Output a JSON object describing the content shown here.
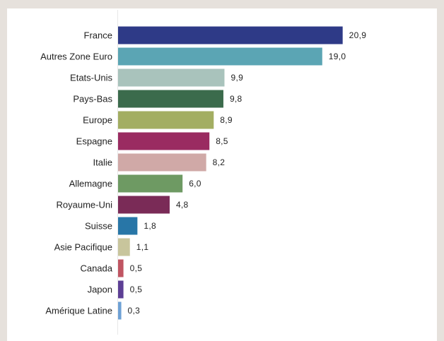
{
  "chart_data": {
    "type": "bar",
    "orientation": "horizontal",
    "title": "",
    "xlabel": "",
    "ylabel": "",
    "grid": false,
    "legend": "none",
    "xlim": [
      0,
      21
    ],
    "categories": [
      "France",
      "Autres Zone Euro",
      "Etats-Unis",
      "Pays-Bas",
      "Europe",
      "Espagne",
      "Italie",
      "Allemagne",
      "Royaume-Uni",
      "Suisse",
      "Asie Pacifique",
      "Canada",
      "Japon",
      "Amérique Latine"
    ],
    "values": [
      20.9,
      19.0,
      9.9,
      9.8,
      8.9,
      8.5,
      8.2,
      6.0,
      4.8,
      1.8,
      1.1,
      0.5,
      0.5,
      0.3
    ],
    "value_labels": [
      "20,9",
      "19,0",
      "9,9",
      "9,8",
      "8,9",
      "8,5",
      "8,2",
      "6,0",
      "4,8",
      "1,8",
      "1,1",
      "0,5",
      "0,5",
      "0,3"
    ],
    "colors": [
      "#2e3a87",
      "#5ba5b4",
      "#a9c3bc",
      "#3b6b4c",
      "#a3ae62",
      "#9a2b61",
      "#d0a9a7",
      "#6e9a63",
      "#7a2b57",
      "#2876a7",
      "#c8c59c",
      "#c05562",
      "#5d3f95",
      "#6ea1d5"
    ]
  }
}
